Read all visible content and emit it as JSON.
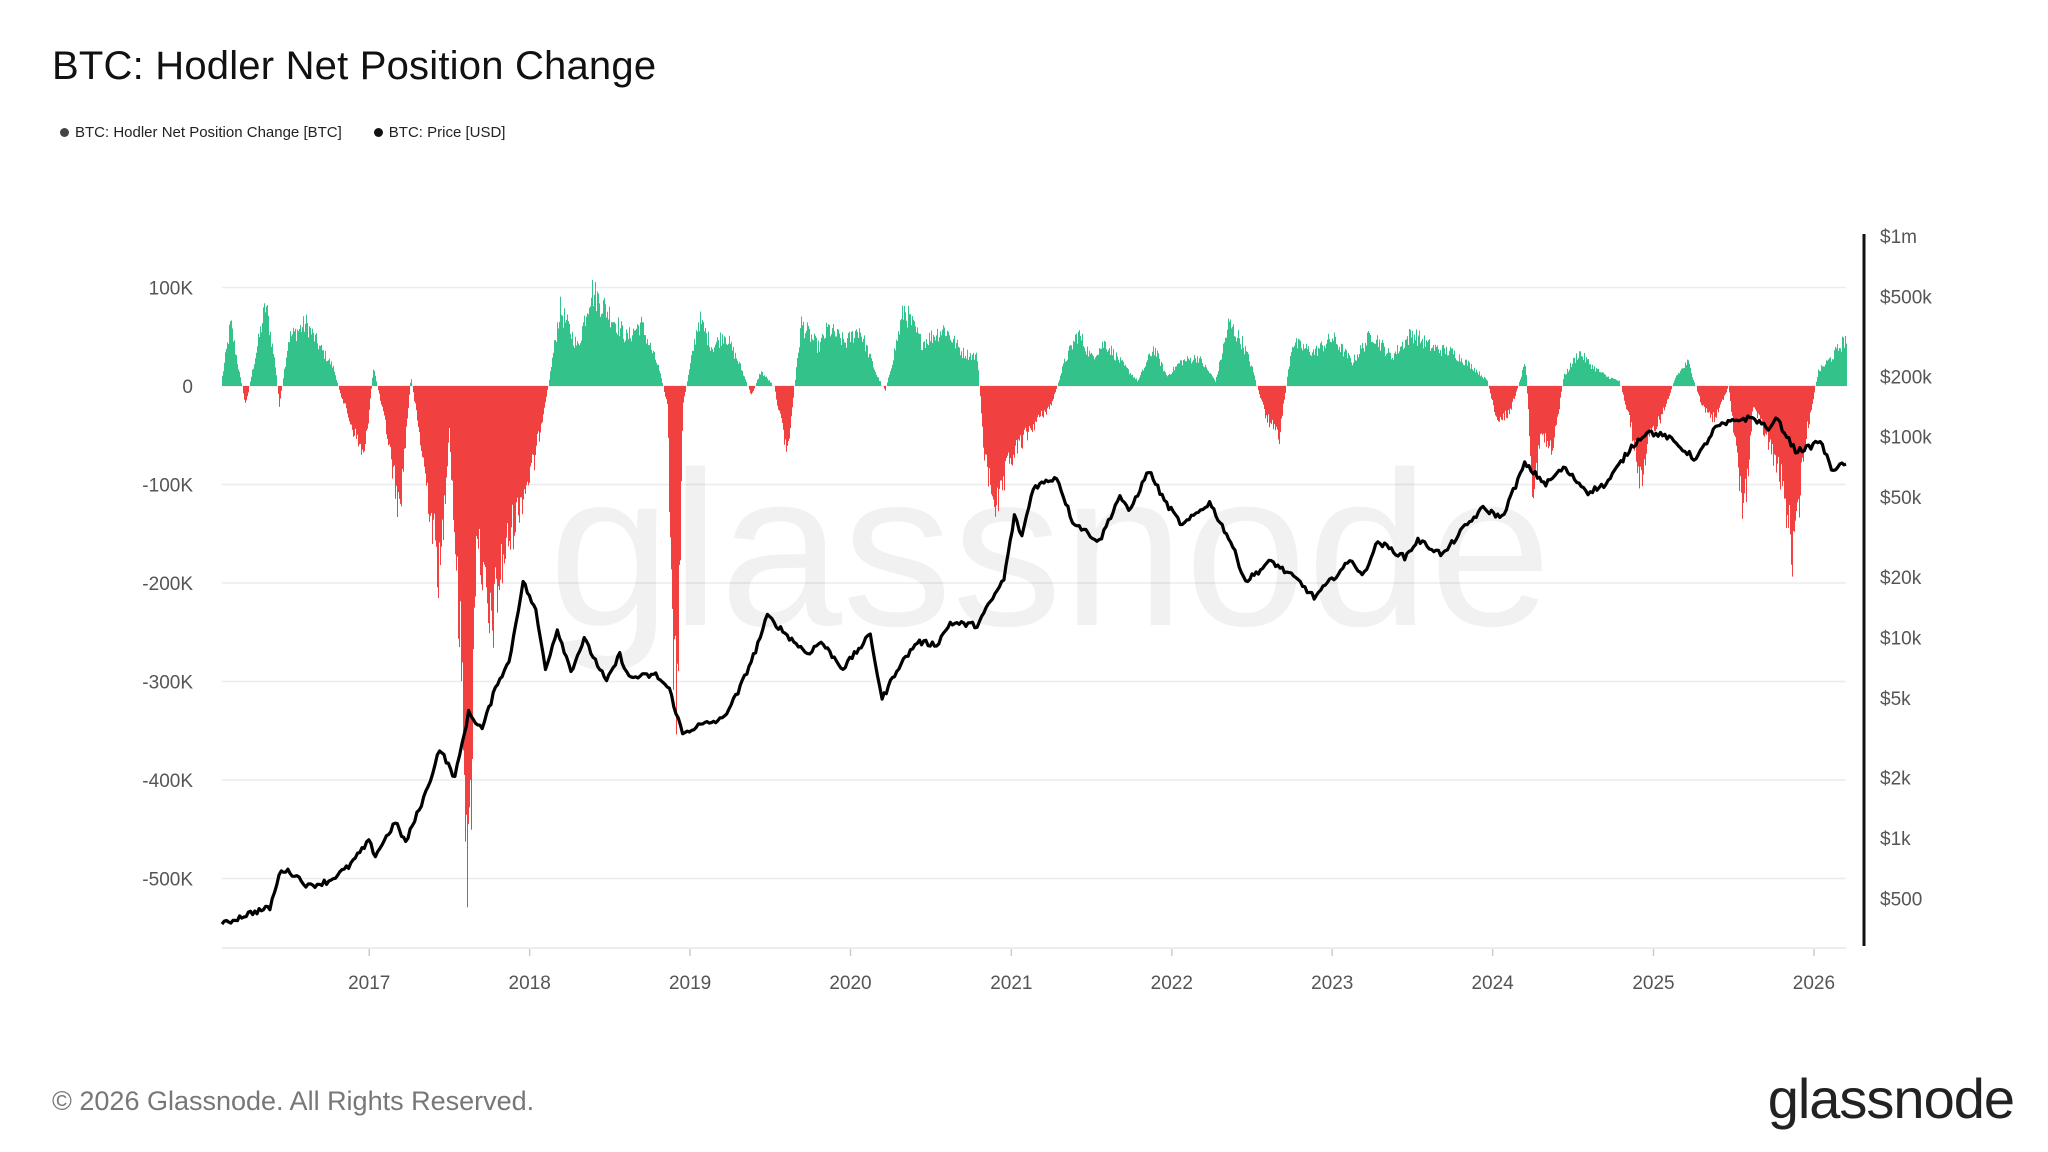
{
  "header": {
    "title": "BTC: Hodler Net Position Change"
  },
  "legend": [
    {
      "label": "BTC: Hodler Net Position Change [BTC]",
      "color": "#444444"
    },
    {
      "label": "BTC: Price [USD]",
      "color": "#111111"
    }
  ],
  "watermark": "glassnode",
  "footer": {
    "copyright": "© 2026 Glassnode. All Rights Reserved.",
    "logo": "glassnode"
  },
  "colors": {
    "positive": "#33c28a",
    "negative": "#f0403f",
    "price": "#000000",
    "grid": "#ececec"
  },
  "chart_data": {
    "type": "area",
    "title": "BTC: Hodler Net Position Change",
    "x_range": [
      "2016-02-01",
      "2026-03-15"
    ],
    "x_tick_labels": [
      "2017",
      "2018",
      "2019",
      "2020",
      "2021",
      "2022",
      "2023",
      "2024",
      "2025",
      "2026"
    ],
    "left_axis": {
      "label": "",
      "range": [
        -580000,
        100000
      ],
      "tick_values": [
        100000,
        0,
        -100000,
        -200000,
        -300000,
        -400000,
        -500000
      ],
      "tick_labels": [
        "100K",
        "0",
        "-100K",
        "-200K",
        "-300K",
        "-400K",
        "-500K"
      ]
    },
    "right_axis": {
      "label": "",
      "scale": "log",
      "range": [
        300,
        1000000
      ],
      "tick_values": [
        1000000,
        500000,
        200000,
        100000,
        50000,
        20000,
        10000,
        5000,
        2000,
        1000,
        500
      ],
      "tick_labels": [
        "$1m",
        "$500k",
        "$200k",
        "$100k",
        "$50k",
        "$20k",
        "$10k",
        "$5k",
        "$2k",
        "$1k",
        "$500"
      ]
    },
    "series": [
      {
        "name": "BTC: Hodler Net Position Change [BTC]",
        "axis": "left",
        "points": [
          [
            "2016-02-01",
            10000
          ],
          [
            "2016-02-20",
            65000
          ],
          [
            "2016-03-10",
            15000
          ],
          [
            "2016-03-25",
            -20000
          ],
          [
            "2016-04-20",
            40000
          ],
          [
            "2016-05-10",
            85000
          ],
          [
            "2016-06-01",
            20000
          ],
          [
            "2016-06-10",
            -20000
          ],
          [
            "2016-07-01",
            50000
          ],
          [
            "2016-08-10",
            65000
          ],
          [
            "2016-09-10",
            40000
          ],
          [
            "2016-10-10",
            20000
          ],
          [
            "2016-10-25",
            -5000
          ],
          [
            "2016-11-20",
            -40000
          ],
          [
            "2016-12-20",
            -75000
          ],
          [
            "2017-01-10",
            20000
          ],
          [
            "2017-02-10",
            -50000
          ],
          [
            "2017-03-10",
            -130000
          ],
          [
            "2017-04-05",
            10000
          ],
          [
            "2017-05-10",
            -100000
          ],
          [
            "2017-06-10",
            -200000
          ],
          [
            "2017-07-01",
            -40000
          ],
          [
            "2017-08-01",
            -320000
          ],
          [
            "2017-08-15",
            -530000
          ],
          [
            "2017-09-01",
            -140000
          ],
          [
            "2017-10-01",
            -260000
          ],
          [
            "2017-11-01",
            -180000
          ],
          [
            "2017-12-10",
            -120000
          ],
          [
            "2018-01-10",
            -80000
          ],
          [
            "2018-02-15",
            10000
          ],
          [
            "2018-03-10",
            80000
          ],
          [
            "2018-04-20",
            40000
          ],
          [
            "2018-05-20",
            100000
          ],
          [
            "2018-07-01",
            75000
          ],
          [
            "2018-08-10",
            50000
          ],
          [
            "2018-09-10",
            65000
          ],
          [
            "2018-10-20",
            20000
          ],
          [
            "2018-11-10",
            -20000
          ],
          [
            "2018-11-20",
            -260000
          ],
          [
            "2018-12-01",
            -340000
          ],
          [
            "2018-12-15",
            -20000
          ],
          [
            "2019-01-20",
            70000
          ],
          [
            "2019-02-20",
            40000
          ],
          [
            "2019-03-20",
            55000
          ],
          [
            "2019-04-25",
            20000
          ],
          [
            "2019-05-20",
            -10000
          ],
          [
            "2019-06-10",
            15000
          ],
          [
            "2019-07-10",
            0
          ],
          [
            "2019-08-10",
            -70000
          ],
          [
            "2019-09-10",
            65000
          ],
          [
            "2019-10-20",
            40000
          ],
          [
            "2019-11-10",
            60000
          ],
          [
            "2019-12-20",
            45000
          ],
          [
            "2020-01-20",
            60000
          ],
          [
            "2020-03-01",
            10000
          ],
          [
            "2020-03-20",
            -5000
          ],
          [
            "2020-05-01",
            80000
          ],
          [
            "2020-06-10",
            45000
          ],
          [
            "2020-08-01",
            60000
          ],
          [
            "2020-09-10",
            35000
          ],
          [
            "2020-10-15",
            30000
          ],
          [
            "2020-11-01",
            -80000
          ],
          [
            "2020-12-01",
            -130000
          ],
          [
            "2020-12-25",
            -80000
          ],
          [
            "2021-01-20",
            -60000
          ],
          [
            "2021-03-01",
            -35000
          ],
          [
            "2021-04-01",
            -20000
          ],
          [
            "2021-05-01",
            25000
          ],
          [
            "2021-06-01",
            55000
          ],
          [
            "2021-07-01",
            30000
          ],
          [
            "2021-08-01",
            45000
          ],
          [
            "2021-09-15",
            20000
          ],
          [
            "2021-10-15",
            5000
          ],
          [
            "2021-11-20",
            40000
          ],
          [
            "2021-12-20",
            10000
          ],
          [
            "2022-01-20",
            25000
          ],
          [
            "2022-03-01",
            30000
          ],
          [
            "2022-04-10",
            5000
          ],
          [
            "2022-05-10",
            65000
          ],
          [
            "2022-06-10",
            45000
          ],
          [
            "2022-07-01",
            20000
          ],
          [
            "2022-08-01",
            -30000
          ],
          [
            "2022-09-01",
            -55000
          ],
          [
            "2022-10-01",
            45000
          ],
          [
            "2022-11-20",
            35000
          ],
          [
            "2023-01-01",
            50000
          ],
          [
            "2023-02-15",
            25000
          ],
          [
            "2023-04-01",
            55000
          ],
          [
            "2023-05-15",
            30000
          ],
          [
            "2023-07-01",
            55000
          ],
          [
            "2023-08-15",
            40000
          ],
          [
            "2023-10-01",
            35000
          ],
          [
            "2023-11-15",
            20000
          ],
          [
            "2023-12-20",
            5000
          ],
          [
            "2024-01-10",
            -40000
          ],
          [
            "2024-02-10",
            -25000
          ],
          [
            "2024-03-15",
            25000
          ],
          [
            "2024-04-01",
            -110000
          ],
          [
            "2024-04-20",
            -50000
          ],
          [
            "2024-05-15",
            -70000
          ],
          [
            "2024-06-10",
            10000
          ],
          [
            "2024-07-15",
            35000
          ],
          [
            "2024-08-15",
            20000
          ],
          [
            "2024-09-15",
            10000
          ],
          [
            "2024-10-15",
            5000
          ],
          [
            "2024-11-10",
            -40000
          ],
          [
            "2024-12-01",
            -100000
          ],
          [
            "2024-12-25",
            -50000
          ],
          [
            "2025-01-20",
            -30000
          ],
          [
            "2025-02-20",
            10000
          ],
          [
            "2025-03-20",
            25000
          ],
          [
            "2025-04-20",
            -20000
          ],
          [
            "2025-05-20",
            -35000
          ],
          [
            "2025-06-20",
            0
          ],
          [
            "2025-07-10",
            -80000
          ],
          [
            "2025-07-25",
            -135000
          ],
          [
            "2025-08-15",
            -20000
          ],
          [
            "2025-09-20",
            -60000
          ],
          [
            "2025-10-20",
            -100000
          ],
          [
            "2025-11-15",
            -180000
          ],
          [
            "2025-12-10",
            -60000
          ],
          [
            "2026-01-10",
            15000
          ],
          [
            "2026-02-10",
            30000
          ],
          [
            "2026-03-15",
            50000
          ]
        ]
      },
      {
        "name": "BTC: Price [USD]",
        "axis": "right",
        "points": [
          [
            "2016-02-01",
            370
          ],
          [
            "2016-04-01",
            420
          ],
          [
            "2016-05-20",
            450
          ],
          [
            "2016-06-15",
            700
          ],
          [
            "2016-07-15",
            660
          ],
          [
            "2016-08-15",
            575
          ],
          [
            "2016-10-01",
            610
          ],
          [
            "2016-11-15",
            720
          ],
          [
            "2016-12-31",
            960
          ],
          [
            "2017-01-15",
            820
          ],
          [
            "2017-03-01",
            1200
          ],
          [
            "2017-03-25",
            950
          ],
          [
            "2017-05-15",
            1800
          ],
          [
            "2017-06-10",
            2800
          ],
          [
            "2017-07-15",
            2000
          ],
          [
            "2017-08-15",
            4200
          ],
          [
            "2017-09-15",
            3500
          ],
          [
            "2017-10-20",
            6000
          ],
          [
            "2017-11-15",
            7500
          ],
          [
            "2017-12-17",
            19000
          ],
          [
            "2018-01-15",
            13500
          ],
          [
            "2018-02-06",
            7000
          ],
          [
            "2018-03-05",
            11000
          ],
          [
            "2018-04-05",
            6800
          ],
          [
            "2018-05-05",
            9800
          ],
          [
            "2018-06-25",
            6000
          ],
          [
            "2018-07-25",
            8200
          ],
          [
            "2018-08-15",
            6300
          ],
          [
            "2018-10-15",
            6500
          ],
          [
            "2018-11-15",
            5500
          ],
          [
            "2018-12-15",
            3300
          ],
          [
            "2019-01-15",
            3600
          ],
          [
            "2019-03-15",
            3900
          ],
          [
            "2019-04-20",
            5300
          ],
          [
            "2019-05-30",
            8600
          ],
          [
            "2019-06-26",
            12800
          ],
          [
            "2019-08-15",
            10000
          ],
          [
            "2019-09-25",
            8300
          ],
          [
            "2019-10-26",
            9500
          ],
          [
            "2019-12-15",
            7000
          ],
          [
            "2020-02-15",
            10300
          ],
          [
            "2020-03-13",
            4900
          ],
          [
            "2020-04-15",
            6900
          ],
          [
            "2020-06-01",
            9500
          ],
          [
            "2020-07-15",
            9200
          ],
          [
            "2020-08-15",
            11800
          ],
          [
            "2020-10-15",
            11500
          ],
          [
            "2020-12-15",
            19500
          ],
          [
            "2021-01-08",
            40000
          ],
          [
            "2021-01-25",
            32000
          ],
          [
            "2021-02-20",
            56000
          ],
          [
            "2021-04-14",
            63000
          ],
          [
            "2021-05-20",
            38000
          ],
          [
            "2021-07-20",
            30000
          ],
          [
            "2021-09-05",
            51000
          ],
          [
            "2021-09-25",
            42000
          ],
          [
            "2021-11-10",
            68000
          ],
          [
            "2021-12-15",
            48000
          ],
          [
            "2022-01-25",
            36000
          ],
          [
            "2022-03-28",
            47000
          ],
          [
            "2022-05-15",
            30000
          ],
          [
            "2022-06-18",
            19000
          ],
          [
            "2022-08-15",
            24000
          ],
          [
            "2022-10-15",
            19200
          ],
          [
            "2022-11-21",
            15800
          ],
          [
            "2023-01-15",
            21000
          ],
          [
            "2023-02-15",
            24500
          ],
          [
            "2023-03-10",
            20000
          ],
          [
            "2023-04-15",
            30000
          ],
          [
            "2023-06-15",
            25000
          ],
          [
            "2023-07-15",
            30500
          ],
          [
            "2023-09-10",
            25800
          ],
          [
            "2023-10-25",
            34500
          ],
          [
            "2023-12-10",
            44000
          ],
          [
            "2024-01-22",
            39500
          ],
          [
            "2024-03-14",
            73000
          ],
          [
            "2024-05-01",
            58000
          ],
          [
            "2024-06-10",
            70000
          ],
          [
            "2024-08-05",
            53000
          ],
          [
            "2024-09-15",
            58000
          ],
          [
            "2024-11-12",
            89000
          ],
          [
            "2024-12-17",
            106000
          ],
          [
            "2025-02-01",
            100000
          ],
          [
            "2025-04-08",
            77000
          ],
          [
            "2025-05-22",
            111000
          ],
          [
            "2025-07-14",
            122000
          ],
          [
            "2025-08-14",
            124000
          ],
          [
            "2025-09-25",
            109000
          ],
          [
            "2025-10-06",
            125000
          ],
          [
            "2025-11-20",
            85000
          ],
          [
            "2025-12-20",
            88000
          ],
          [
            "2026-01-15",
            96000
          ],
          [
            "2026-02-10",
            69000
          ],
          [
            "2026-03-15",
            73000
          ]
        ]
      }
    ]
  }
}
